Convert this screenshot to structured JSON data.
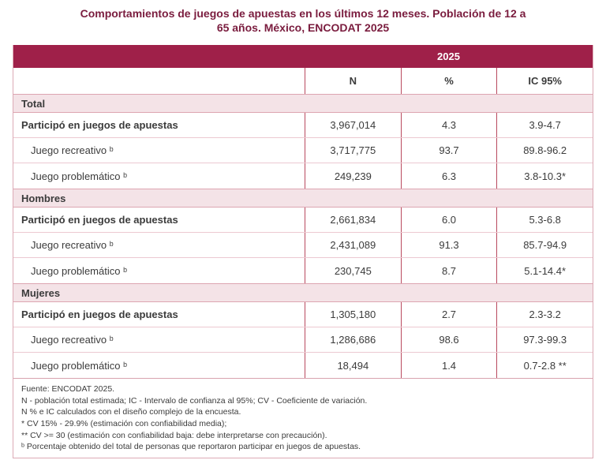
{
  "title": {
    "line1": "Comportamientos de juegos de apuestas en los últimos 12 meses. Población de 12 a",
    "line2": "65 años. México, ENCODAT 2025"
  },
  "table": {
    "year_header": "2025",
    "columns": [
      "N",
      "%",
      "IC 95%"
    ],
    "sections": [
      {
        "name": "Total",
        "rows": [
          {
            "label": "Participó en juegos de apuestas",
            "n": "3,967,014",
            "pct": "4.3",
            "ic": "3.9-4.7"
          },
          {
            "label": "Juego recreativo ᵇ",
            "n": "3,717,775",
            "pct": "93.7",
            "ic": "89.8-96.2"
          },
          {
            "label": "Juego problemático ᵇ",
            "n": "249,239",
            "pct": "6.3",
            "ic": "3.8-10.3*"
          }
        ]
      },
      {
        "name": "Hombres",
        "rows": [
          {
            "label": "Participó en juegos de apuestas",
            "n": "2,661,834",
            "pct": "6.0",
            "ic": "5.3-6.8"
          },
          {
            "label": "Juego recreativo ᵇ",
            "n": "2,431,089",
            "pct": "91.3",
            "ic": "85.7-94.9"
          },
          {
            "label": "Juego problemático ᵇ",
            "n": "230,745",
            "pct": "8.7",
            "ic": "5.1-14.4*"
          }
        ]
      },
      {
        "name": "Mujeres",
        "rows": [
          {
            "label": "Participó en juegos de apuestas",
            "n": "1,305,180",
            "pct": "2.7",
            "ic": "2.3-3.2"
          },
          {
            "label": "Juego recreativo ᵇ",
            "n": "1,286,686",
            "pct": "98.6",
            "ic": "97.3-99.3"
          },
          {
            "label": "Juego problemático ᵇ",
            "n": "18,494",
            "pct": "1.4",
            "ic": "0.7-2.8 **"
          }
        ]
      }
    ]
  },
  "notes": [
    "Fuente: ENCODAT 2025.",
    "N - población total estimada; IC - Intervalo de confianza al 95%; CV - Coeficiente de variación.",
    "N % e IC calculados con el diseño complejo de la encuesta.",
    "* CV 15% - 29.9% (estimación con confiabilidad media);",
    "** CV >= 30 (estimación con confiabilidad baja: debe interpretarse con precaución).",
    "ᵇ Porcentaje obtenido del total de personas que reportaron participar en juegos de apuestas."
  ],
  "colors": {
    "header_maroon": "#9f2049",
    "title_maroon": "#7a1c3e",
    "section_band_pink": "#f4e3e7",
    "divider_dark": "#b9495f",
    "divider_light": "#ecc9d1",
    "text_dark": "#3b3b3b"
  }
}
